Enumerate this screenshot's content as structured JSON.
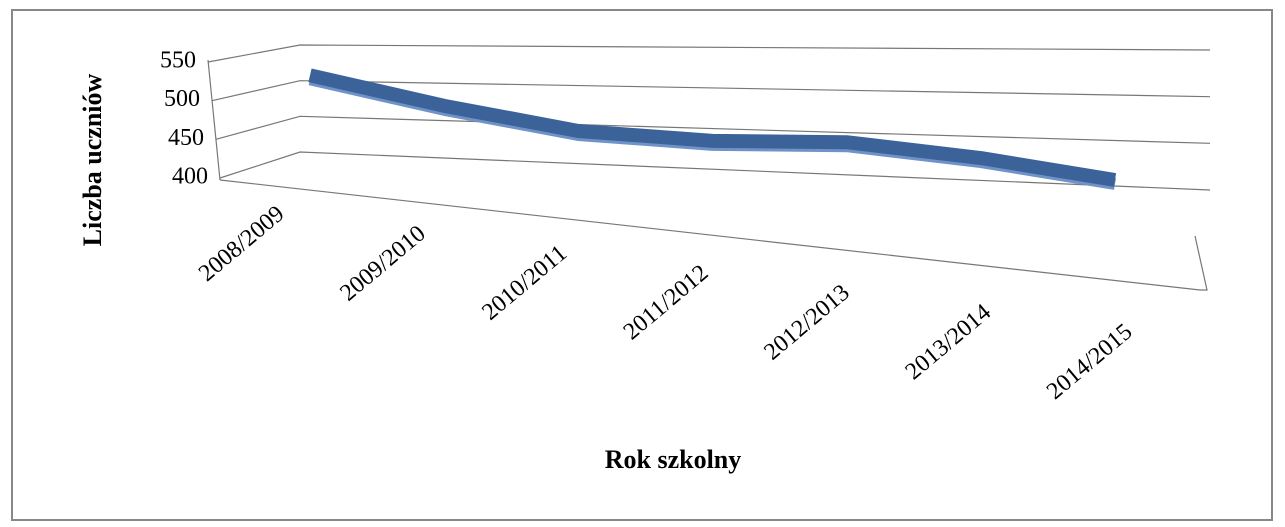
{
  "chart_data": {
    "type": "line3d",
    "y_label": "Liczba uczniów",
    "x_label": "Rok szkolny",
    "categories": [
      "2008/2009",
      "2009/2010",
      "2010/2011",
      "2011/2012",
      "2012/2013",
      "2013/2014",
      "2014/2015"
    ],
    "values": [
      530,
      490,
      460,
      450,
      450,
      435,
      415
    ],
    "color": "#3c6399",
    "ylim": [
      400,
      550
    ],
    "yticks": [
      400,
      450,
      500,
      550
    ],
    "grid": true
  }
}
